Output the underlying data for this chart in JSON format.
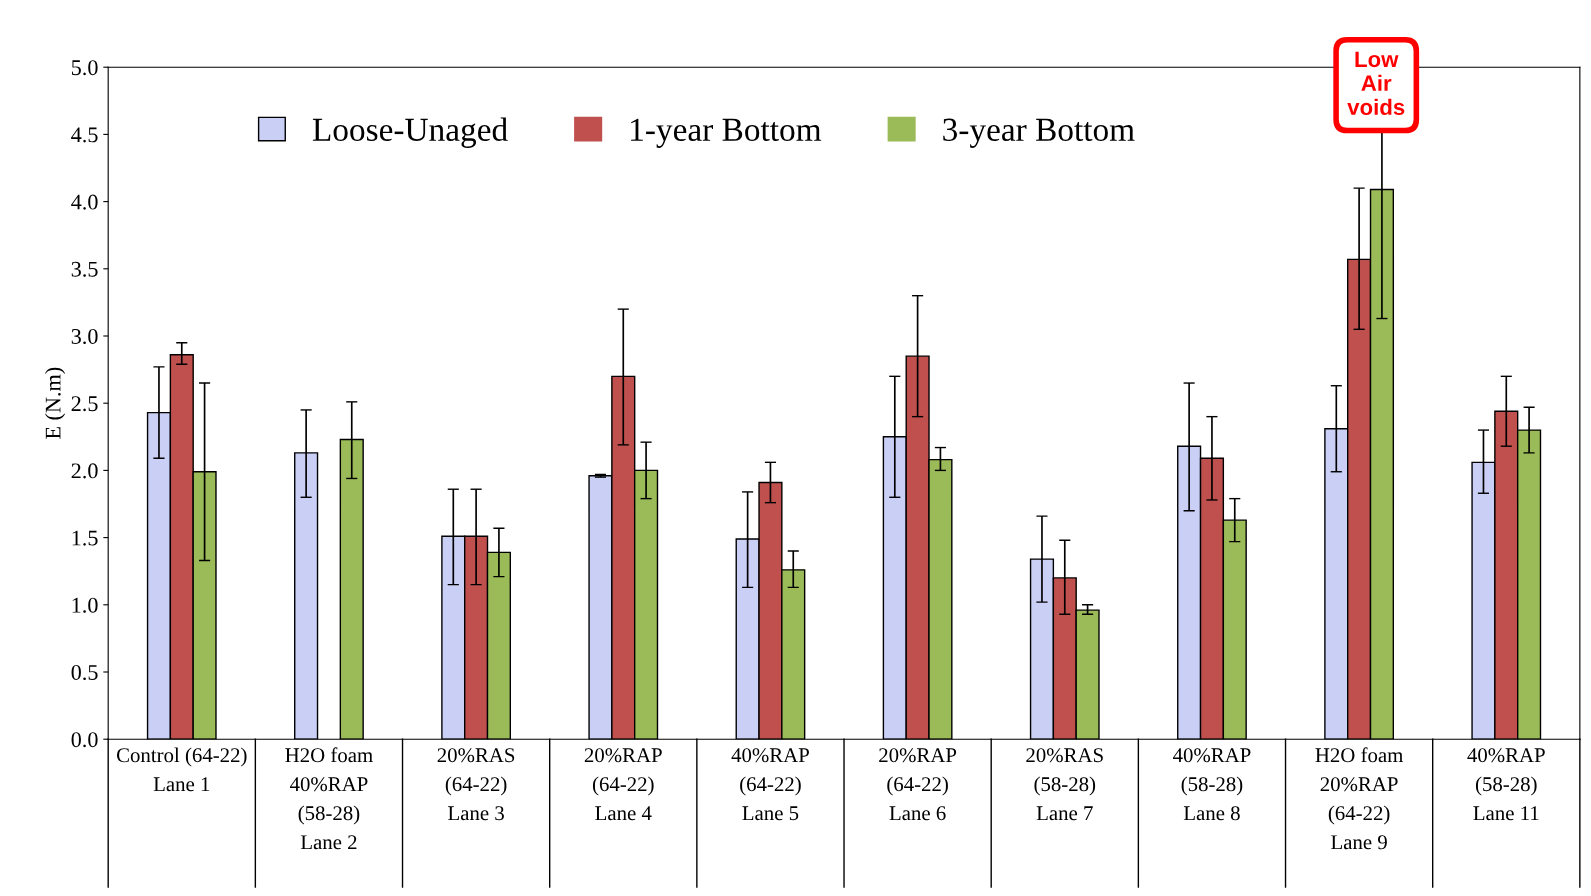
{
  "chart_data": {
    "type": "bar",
    "ylabel": "E (N.m)",
    "ylim": [
      0,
      5
    ],
    "yticks": [
      {
        "value": 0,
        "label": "0.0"
      },
      {
        "value": 0.5,
        "label": "0.5"
      },
      {
        "value": 1,
        "label": "1.0"
      },
      {
        "value": 1.5,
        "label": "1.5"
      },
      {
        "value": 2,
        "label": "2.0"
      },
      {
        "value": 2.5,
        "label": "2.5"
      },
      {
        "value": 3,
        "label": "3.0"
      },
      {
        "value": 3.5,
        "label": "3.5"
      },
      {
        "value": 4,
        "label": "4.0"
      },
      {
        "value": 4.5,
        "label": "4.5"
      },
      {
        "value": 5,
        "label": "5.0"
      }
    ],
    "categories": [
      "Control (64-22)\nLane 1",
      "H2O foam\n40%RAP\n(58-28)\nLane 2",
      "20%RAS\n(64-22)\nLane 3",
      "20%RAP\n(64-22)\nLane 4",
      "40%RAP\n(64-22)\nLane 5",
      "20%RAP\n(64-22)\nLane 6",
      "20%RAS\n(58-28)\nLane 7",
      "40%RAP\n(58-28)\nLane 8",
      "H2O foam\n20%RAP\n(64-22)\nLane 9",
      "40%RAP\n(58-28)\nLane 11"
    ],
    "series": [
      {
        "name": "Loose-Unaged",
        "color": "#c9cff5",
        "values": [
          2.43,
          2.13,
          1.51,
          1.96,
          1.49,
          2.25,
          1.34,
          2.18,
          2.31,
          2.06
        ],
        "errors": [
          [
            2.09,
            2.77
          ],
          [
            1.8,
            2.45
          ],
          [
            1.15,
            1.86
          ],
          [
            1.95,
            1.97
          ],
          [
            1.13,
            1.84
          ],
          [
            1.8,
            2.7
          ],
          [
            1.02,
            1.66
          ],
          [
            1.7,
            2.65
          ],
          [
            1.99,
            2.63
          ],
          [
            1.83,
            2.3
          ]
        ]
      },
      {
        "name": "1-year Bottom",
        "color": "#c0504d",
        "values": [
          2.86,
          null,
          1.51,
          2.7,
          1.91,
          2.85,
          1.2,
          2.09,
          3.57,
          2.44
        ],
        "errors": [
          [
            2.79,
            2.95
          ],
          null,
          [
            1.15,
            1.86
          ],
          [
            2.19,
            3.2
          ],
          [
            1.76,
            2.06
          ],
          [
            2.4,
            3.3
          ],
          [
            0.93,
            1.48
          ],
          [
            1.78,
            2.4
          ],
          [
            3.05,
            4.1
          ],
          [
            2.18,
            2.7
          ]
        ]
      },
      {
        "name": "3-year Bottom",
        "color": "#9bbb59",
        "values": [
          1.99,
          2.23,
          1.39,
          2.0,
          1.26,
          2.08,
          0.96,
          1.63,
          4.09,
          2.3
        ],
        "errors": [
          [
            1.33,
            2.65
          ],
          [
            1.94,
            2.51
          ],
          [
            1.21,
            1.57
          ],
          [
            1.79,
            2.21
          ],
          [
            1.13,
            1.4
          ],
          [
            2.0,
            2.17
          ],
          [
            0.93,
            1.0
          ],
          [
            1.47,
            1.79
          ],
          [
            3.13,
            4.63
          ],
          [
            2.13,
            2.47
          ]
        ]
      }
    ],
    "legend": "top",
    "grid": false,
    "annotations": [
      "Low\nAir\nvoids"
    ]
  }
}
